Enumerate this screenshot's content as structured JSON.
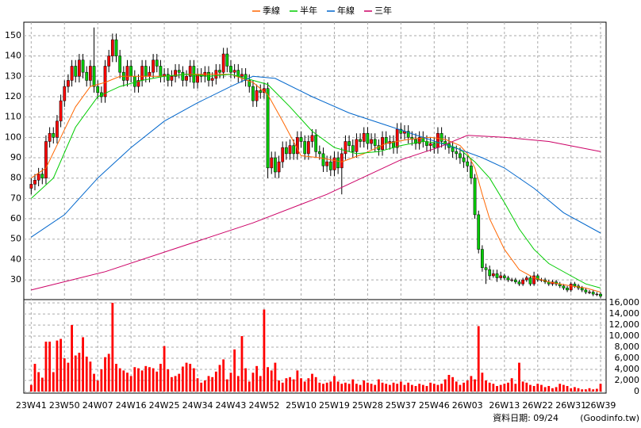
{
  "chart_data": {
    "type": "candlestick",
    "legend": "top",
    "grid": true,
    "up_color": "#ff0000",
    "down_color": "#00cc00",
    "xlim": [
      -2,
      155.5
    ],
    "xticks": [
      {
        "value": 0,
        "label": "23W41"
      },
      {
        "value": 9,
        "label": "23W50"
      },
      {
        "value": 18,
        "label": "24W07"
      },
      {
        "value": 27,
        "label": "24W16"
      },
      {
        "value": 36,
        "label": "24W25"
      },
      {
        "value": 45,
        "label": "24W34"
      },
      {
        "value": 54,
        "label": "24W43"
      },
      {
        "value": 63,
        "label": "24W52"
      },
      {
        "value": 73,
        "label": "25W10"
      },
      {
        "value": 82,
        "label": "25W19"
      },
      {
        "value": 91,
        "label": "25W28"
      },
      {
        "value": 100,
        "label": "25W37"
      },
      {
        "value": 109,
        "label": "25W46"
      },
      {
        "value": 118,
        "label": "26W03"
      },
      {
        "value": 128,
        "label": "26W13"
      },
      {
        "value": 137,
        "label": "26W22"
      },
      {
        "value": 146,
        "label": "26W31"
      },
      {
        "value": 154,
        "label": "26W39"
      }
    ],
    "ylim": [
      20.3,
      156.6
    ],
    "yticks": [
      30,
      40,
      50,
      60,
      70,
      80,
      90,
      100,
      110,
      120,
      130,
      140,
      150
    ],
    "open": [
      75,
      77,
      79,
      82,
      80,
      98,
      102,
      100,
      108,
      118,
      125,
      128,
      135,
      130,
      138,
      132,
      128,
      135,
      125,
      122,
      120,
      135,
      140,
      148,
      140,
      132,
      128,
      135,
      130,
      125,
      128,
      135,
      130,
      132,
      138,
      135,
      130,
      131,
      128,
      130,
      133,
      132,
      128,
      130,
      135,
      127,
      131,
      130,
      132,
      128,
      129,
      133,
      132,
      141,
      135,
      132,
      133,
      130,
      131,
      128,
      125,
      118,
      123,
      122,
      124,
      85,
      90,
      83,
      88,
      95,
      92,
      96,
      92,
      100,
      98,
      92,
      98,
      101,
      93,
      92,
      86,
      88,
      84,
      90,
      85,
      92,
      98,
      96,
      93,
      99,
      98,
      102,
      97,
      99,
      96,
      94,
      100,
      97,
      98,
      95,
      104,
      102,
      103,
      100,
      99,
      97,
      100,
      98,
      96,
      97,
      95,
      102,
      98,
      97,
      95,
      93,
      92,
      90,
      88,
      86,
      80,
      62,
      45,
      36,
      35,
      32,
      33,
      31,
      32,
      31,
      30,
      30,
      29,
      28,
      30,
      31,
      28,
      32,
      30,
      30,
      29,
      28,
      29,
      28,
      27,
      26,
      25,
      28,
      27,
      26,
      25,
      24,
      24,
      23,
      23
    ],
    "high": [
      80,
      82,
      85,
      85,
      101,
      105,
      105,
      111,
      121,
      128,
      131,
      138,
      138,
      141,
      141,
      135,
      138,
      154,
      128,
      125,
      138,
      143,
      151,
      151,
      143,
      135,
      138,
      138,
      133,
      131,
      138,
      138,
      135,
      141,
      141,
      138,
      134,
      134,
      133,
      136,
      136,
      135,
      133,
      138,
      138,
      134,
      134,
      135,
      135,
      132,
      136,
      136,
      144,
      144,
      138,
      136,
      136,
      134,
      134,
      131,
      128,
      126,
      126,
      127,
      127,
      93,
      93,
      91,
      98,
      98,
      99,
      99,
      103,
      103,
      101,
      101,
      104,
      104,
      96,
      95,
      91,
      91,
      93,
      93,
      95,
      101,
      101,
      99,
      102,
      102,
      105,
      105,
      102,
      102,
      99,
      103,
      103,
      101,
      101,
      107,
      107,
      106,
      106,
      103,
      102,
      103,
      103,
      101,
      100,
      100,
      105,
      105,
      101,
      100,
      98,
      96,
      95,
      93,
      91,
      89,
      82,
      64,
      47,
      38,
      37,
      35,
      35,
      34,
      33,
      32,
      31,
      31,
      30,
      31,
      32,
      32,
      34,
      33,
      31,
      31,
      30,
      30,
      30,
      29,
      28,
      27,
      29,
      29,
      28,
      27,
      26,
      25,
      25,
      24,
      24
    ],
    "low": [
      72,
      74,
      76,
      77,
      77,
      95,
      97,
      97,
      105,
      115,
      122,
      125,
      127,
      127,
      129,
      125,
      125,
      122,
      119,
      117,
      117,
      132,
      137,
      137,
      129,
      125,
      125,
      127,
      122,
      122,
      125,
      127,
      127,
      129,
      132,
      127,
      127,
      125,
      125,
      127,
      129,
      125,
      125,
      127,
      124,
      124,
      127,
      127,
      125,
      125,
      126,
      129,
      129,
      132,
      129,
      129,
      127,
      127,
      125,
      122,
      115,
      115,
      119,
      119,
      80,
      82,
      80,
      80,
      85,
      89,
      89,
      89,
      89,
      95,
      89,
      89,
      95,
      90,
      89,
      83,
      83,
      81,
      81,
      82,
      72,
      89,
      93,
      90,
      90,
      95,
      95,
      94,
      94,
      93,
      91,
      91,
      94,
      94,
      92,
      92,
      99,
      99,
      97,
      96,
      94,
      94,
      95,
      93,
      93,
      92,
      92,
      95,
      94,
      92,
      90,
      89,
      87,
      85,
      83,
      77,
      60,
      43,
      34,
      28,
      30,
      31,
      29,
      30,
      30,
      29,
      29,
      28,
      27,
      27,
      29,
      27,
      27,
      29,
      29,
      28,
      27,
      27,
      27,
      26,
      25,
      24,
      24,
      26,
      25,
      24,
      23,
      23,
      22,
      22,
      21
    ],
    "close": [
      77,
      79,
      82,
      80,
      98,
      102,
      100,
      108,
      118,
      125,
      128,
      135,
      130,
      138,
      132,
      128,
      135,
      125,
      122,
      120,
      135,
      140,
      148,
      140,
      132,
      128,
      135,
      130,
      125,
      128,
      135,
      130,
      132,
      138,
      135,
      130,
      131,
      128,
      130,
      133,
      132,
      128,
      130,
      135,
      127,
      131,
      130,
      132,
      128,
      129,
      133,
      132,
      141,
      135,
      132,
      133,
      130,
      131,
      128,
      125,
      118,
      123,
      122,
      124,
      85,
      90,
      83,
      88,
      95,
      92,
      96,
      92,
      100,
      98,
      92,
      98,
      101,
      93,
      92,
      86,
      88,
      84,
      90,
      85,
      92,
      98,
      96,
      93,
      99,
      98,
      102,
      97,
      99,
      96,
      94,
      100,
      97,
      98,
      95,
      104,
      102,
      103,
      100,
      99,
      97,
      100,
      98,
      96,
      97,
      95,
      102,
      98,
      97,
      95,
      93,
      92,
      90,
      88,
      86,
      80,
      62,
      45,
      36,
      35,
      32,
      33,
      31,
      32,
      31,
      30,
      30,
      29,
      28,
      30,
      31,
      28,
      32,
      30,
      30,
      29,
      28,
      29,
      28,
      27,
      26,
      25,
      28,
      27,
      26,
      25,
      24,
      24,
      23,
      23,
      22
    ],
    "volume": {
      "color": "#ff0000",
      "values": [
        1200,
        5000,
        3500,
        2500,
        9000,
        9000,
        3500,
        9200,
        9500,
        6000,
        5200,
        12000,
        6500,
        7000,
        9800,
        6300,
        5400,
        3200,
        2000,
        4000,
        6200,
        6800,
        16000,
        5000,
        4200,
        3800,
        3400,
        2800,
        4400,
        4200,
        3800,
        4600,
        4400,
        4200,
        3600,
        5000,
        8200,
        4000,
        2600,
        2800,
        3200,
        4500,
        5200,
        5000,
        4200,
        2400,
        1600,
        2000,
        2800,
        2600,
        3600,
        4800,
        5800,
        2200,
        3400,
        7600,
        2800,
        10000,
        4200,
        1800,
        3400,
        4600,
        2800,
        14800,
        4400,
        3800,
        5200,
        2000,
        1600,
        2400,
        2600,
        2200,
        3800,
        2400,
        1800,
        2400,
        3200,
        2600,
        1600,
        1400,
        1600,
        1800,
        2800,
        1800,
        1400,
        1600,
        1400,
        2200,
        1400,
        1200,
        2000,
        1600,
        1400,
        1200,
        2200,
        1600,
        1400,
        1200,
        1600,
        1400,
        1800,
        1200,
        1600,
        1200,
        1000,
        1400,
        1200,
        1000,
        1600,
        1400,
        1200,
        1400,
        2200,
        3000,
        2600,
        1800,
        1200,
        1600,
        2000,
        2800,
        2200,
        11800,
        3400,
        2000,
        1600,
        1400,
        1000,
        1200,
        1400,
        1600,
        2400,
        1400,
        5200,
        1800,
        1600,
        1200,
        1000,
        1400,
        1200,
        800,
        1000,
        600,
        800,
        1400,
        1200,
        1000,
        600,
        800,
        600,
        400,
        400,
        600,
        400,
        500,
        1400
      ],
      "y2lim": [
        0,
        16300
      ],
      "y2ticks": [
        0,
        {
          "value": 2000,
          "label": "2,000"
        },
        {
          "value": 4000,
          "label": "4,000"
        },
        {
          "value": 6000,
          "label": "6,000"
        },
        {
          "value": 8000,
          "label": "8,000"
        },
        {
          "value": 10000,
          "label": "10,000"
        },
        {
          "value": 12000,
          "label": "12,000"
        },
        {
          "value": 14000,
          "label": "14,000"
        },
        {
          "value": 16000,
          "label": "16,000"
        }
      ]
    },
    "series": [
      {
        "name": "季線",
        "color": "#ff6600",
        "x": [
          0,
          4,
          8,
          12,
          16,
          20,
          24,
          30,
          36,
          42,
          48,
          54,
          60,
          64,
          68,
          73,
          78,
          84,
          90,
          96,
          102,
          108,
          112,
          116,
          118,
          120,
          122,
          124,
          128,
          132,
          136,
          140,
          146,
          150,
          154
        ],
        "values": [
          80,
          85,
          100,
          115,
          125,
          127,
          130,
          130,
          130,
          131,
          131,
          131,
          127,
          121,
          108,
          91,
          90,
          88,
          92,
          97,
          99,
          100,
          99,
          96,
          92,
          85,
          72,
          60,
          45,
          35,
          31,
          29,
          27,
          26,
          24
        ]
      },
      {
        "name": "半年",
        "color": "#00cc00",
        "x": [
          0,
          6,
          12,
          18,
          24,
          30,
          36,
          42,
          48,
          54,
          60,
          64,
          70,
          76,
          82,
          88,
          94,
          100,
          106,
          112,
          116,
          120,
          124,
          128,
          132,
          136,
          140,
          146,
          150,
          154
        ],
        "values": [
          70,
          80,
          105,
          120,
          125,
          128,
          130,
          131,
          130,
          131,
          128,
          126,
          115,
          103,
          95,
          92,
          93,
          96,
          98,
          97,
          94,
          88,
          80,
          68,
          55,
          45,
          38,
          32,
          28,
          26
        ]
      },
      {
        "name": "年線",
        "color": "#0066cc",
        "x": [
          0,
          9,
          18,
          27,
          36,
          45,
          54,
          60,
          66,
          76,
          86,
          96,
          106,
          116,
          122,
          128,
          136,
          144,
          154
        ],
        "values": [
          51,
          62,
          80,
          95,
          108,
          117,
          125,
          130,
          129,
          120,
          112,
          106,
          100,
          94,
          90,
          85,
          75,
          63,
          53
        ]
      },
      {
        "name": "三年",
        "color": "#cc0066",
        "x": [
          0,
          20,
          40,
          60,
          80,
          100,
          110,
          118,
          128,
          140,
          154
        ],
        "values": [
          25,
          34,
          46,
          58,
          72,
          89,
          95,
          101,
          100,
          98,
          93
        ]
      }
    ]
  },
  "footer": {
    "date": "資料日期: 09/24",
    "source": "(Goodinfo.tw)"
  }
}
